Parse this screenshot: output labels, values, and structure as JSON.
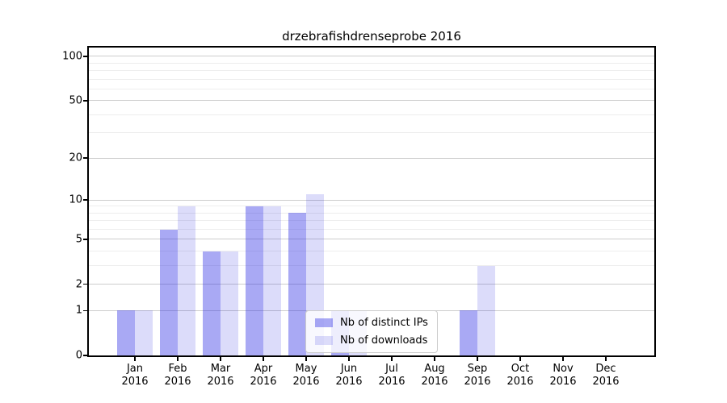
{
  "chart_data": {
    "type": "bar",
    "title": "drzebrafishdrenseprobe 2016",
    "categories": [
      "Jan",
      "Feb",
      "Mar",
      "Apr",
      "May",
      "Jun",
      "Jul",
      "Aug",
      "Sep",
      "Oct",
      "Nov",
      "Dec"
    ],
    "year": "2016",
    "series": [
      {
        "name": "Nb of distinct IPs",
        "color": "rgba(40,40,228,0.40)",
        "solid_color": "#a9a9f4",
        "values": [
          1,
          6,
          4,
          9,
          8,
          1,
          0,
          0,
          1,
          0,
          0,
          0
        ]
      },
      {
        "name": "Nb of downloads",
        "color": "rgba(22,22,222,0.15)",
        "solid_color": "#dcdcfa",
        "values": [
          1,
          9,
          4,
          9,
          11,
          1,
          0,
          0,
          3,
          0,
          0,
          0
        ]
      }
    ],
    "xlabel": "",
    "ylabel": "",
    "yscale": "log1p",
    "yticks": [
      0,
      1,
      2,
      5,
      10,
      20,
      50,
      100
    ],
    "grid_major": [
      1,
      2,
      5,
      10,
      20,
      50,
      100
    ],
    "grid_minor": [
      3,
      4,
      6,
      7,
      8,
      9,
      30,
      40,
      60,
      70,
      80,
      90
    ],
    "ylim": [
      0,
      115
    ],
    "grid": true,
    "legend_position": "lower center",
    "colors": {
      "grid_major": "#cdcdcd",
      "grid_minor": "#ededed",
      "spine": "#000000",
      "background": "#ffffff",
      "text": "#000000"
    }
  }
}
